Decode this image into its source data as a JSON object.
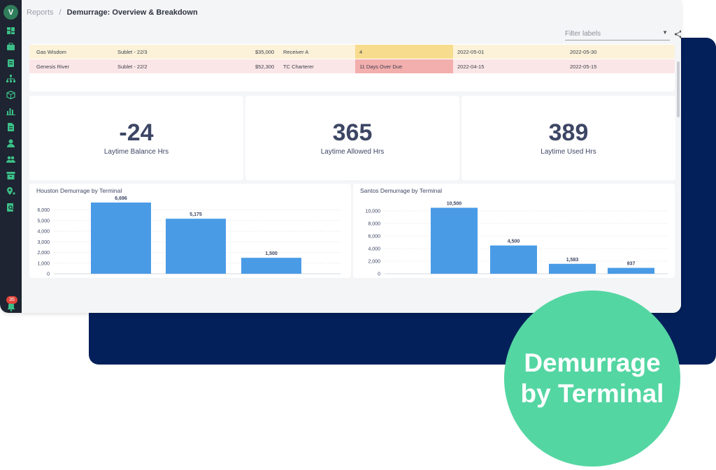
{
  "breadcrumb": {
    "root": "Reports",
    "separator": "/",
    "current": "Demurrage: Overview & Breakdown"
  },
  "filter": {
    "placeholder": "Filter labels"
  },
  "notifications": {
    "count": "35"
  },
  "table": {
    "rows": [
      {
        "vessel": "Gas Wisdom",
        "contract": "Sublet - 22/3",
        "amount": "$35,000",
        "party": "Receiver A",
        "status": "4",
        "start": "2022-05-01",
        "end": "2022-05-30"
      },
      {
        "vessel": "Genesis River",
        "contract": "Sublet - 22/2",
        "amount": "$52,300",
        "party": "TC Charterer",
        "status": "11 Days Over Due",
        "start": "2022-04-15",
        "end": "2022-05-15"
      }
    ]
  },
  "kpis": [
    {
      "value": "-24",
      "label": "Laytime Balance Hrs"
    },
    {
      "value": "365",
      "label": "Laytime Allowed Hrs"
    },
    {
      "value": "389",
      "label": "Laytime Used Hrs"
    }
  ],
  "chart_data": [
    {
      "type": "bar",
      "title": "Houston Demurrage by Terminal",
      "values": [
        6696,
        5175,
        1500
      ],
      "labels": [
        "6,696",
        "5,175",
        "1,500"
      ],
      "ylim": [
        0,
        6500
      ],
      "yticks": [
        0,
        1000,
        2000,
        3000,
        4000,
        5000,
        6000
      ],
      "ytick_labels": [
        "0",
        "1,000",
        "2,000",
        "3,000",
        "4,000",
        "5,000",
        "6,000"
      ],
      "color": "#4a9be6"
    },
    {
      "type": "bar",
      "title": "Santos Demurrage by Terminal",
      "values": [
        10500,
        4500,
        1583,
        937
      ],
      "labels": [
        "10,500",
        "4,500",
        "1,583",
        "937"
      ],
      "ylim": [
        0,
        11000
      ],
      "yticks": [
        0,
        2000,
        4000,
        6000,
        8000,
        10000
      ],
      "ytick_labels": [
        "0",
        "2,000",
        "4,000",
        "6,000",
        "8,000",
        "10,000"
      ],
      "color": "#4a9be6"
    }
  ],
  "promo": {
    "line1": "Demurrage",
    "line2": "by Terminal"
  },
  "colors": {
    "sidebar": "#1e2431",
    "backdrop": "#04205a",
    "promo": "#54d6a2",
    "row_warning": "#fbf2d9",
    "row_overdue": "#fbe6e7",
    "cell_warning": "#f8dc8e",
    "cell_overdue": "#f3aeae"
  },
  "icons": [
    "dashboard-icon",
    "briefcase-icon",
    "clipboard-icon",
    "org-chart-icon",
    "cube-icon",
    "bar-chart-icon",
    "document-icon",
    "user-icon",
    "users-icon",
    "archive-icon",
    "map-pin-icon",
    "report-search-icon"
  ]
}
